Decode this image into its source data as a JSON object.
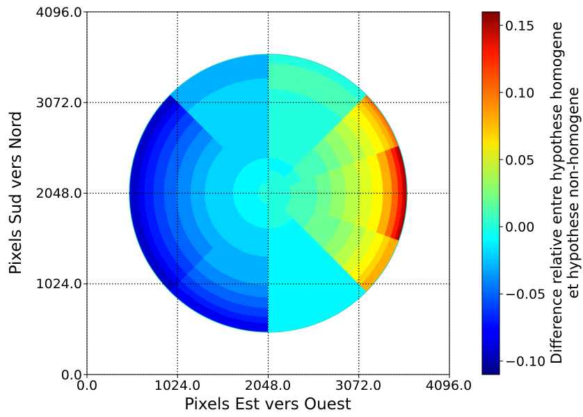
{
  "chart_data": {
    "type": "heatmap",
    "title": "",
    "xlabel": "Pixels Est vers Ouest",
    "ylabel": "Pixels Sud vers Nord",
    "xlim": [
      0,
      4096
    ],
    "ylim": [
      0,
      4096
    ],
    "x_ticks": [
      "0.0",
      "1024.0",
      "2048.0",
      "3072.0",
      "4096.0"
    ],
    "y_ticks": [
      "0.0",
      "1024.0",
      "2048.0",
      "3072.0",
      "4096.0"
    ],
    "grid": true,
    "colormap": "jet",
    "colorbar": {
      "label_line1": "Difference relative entre hypothese homogene",
      "label_line2": "et hypothese non-homogene",
      "range": [
        -0.11,
        0.16
      ],
      "ticks": [
        "−0.10",
        "−0.05",
        "0.00",
        "0.05",
        "0.10",
        "0.15"
      ],
      "tick_values": [
        -0.1,
        -0.05,
        0.0,
        0.05,
        0.1,
        0.15
      ]
    },
    "disk": {
      "center": [
        2048,
        2048
      ],
      "radius": 1570,
      "ring_boundaries": [
        0,
        120,
        260,
        400,
        560,
        720,
        880,
        1040,
        1180,
        1300,
        1400,
        1470,
        1520,
        1550,
        1570
      ],
      "description": "polar sectors coloured by relative difference; negative (blue) on the east/left limb, positive (yellow-red) on the west/right limb",
      "sector_values": [
        {
          "angle_from": -20,
          "angle_to": 20,
          "values": [
            0.0,
            0.0,
            0.01,
            0.01,
            0.02,
            0.03,
            0.04,
            0.05,
            0.06,
            0.08,
            0.1,
            0.12,
            0.14,
            0.15
          ]
        },
        {
          "angle_from": 20,
          "angle_to": 45,
          "values": [
            0.0,
            0.0,
            0.0,
            0.01,
            0.01,
            0.02,
            0.03,
            0.04,
            0.05,
            0.06,
            0.07,
            0.08,
            0.09,
            0.1
          ]
        },
        {
          "angle_from": 45,
          "angle_to": 90,
          "values": [
            0.0,
            0.0,
            -0.01,
            0.0,
            0.0,
            0.0,
            0.0,
            0.0,
            0.01,
            0.01,
            0.01,
            0.0,
            0.0,
            0.0
          ]
        },
        {
          "angle_from": 90,
          "angle_to": 135,
          "values": [
            0.0,
            -0.01,
            -0.01,
            -0.02,
            -0.02,
            -0.02,
            -0.02,
            -0.02,
            -0.02,
            -0.03,
            -0.03,
            -0.03,
            -0.03,
            -0.03
          ]
        },
        {
          "angle_from": 135,
          "angle_to": 160,
          "values": [
            0.0,
            -0.01,
            -0.01,
            -0.02,
            -0.02,
            -0.03,
            -0.04,
            -0.05,
            -0.06,
            -0.07,
            -0.08,
            -0.09,
            -0.09,
            -0.09
          ]
        },
        {
          "angle_from": 160,
          "angle_to": 200,
          "values": [
            0.0,
            -0.01,
            -0.01,
            -0.02,
            -0.02,
            -0.03,
            -0.04,
            -0.05,
            -0.06,
            -0.07,
            -0.08,
            -0.09,
            -0.09,
            -0.09
          ]
        },
        {
          "angle_from": 200,
          "angle_to": 225,
          "values": [
            0.0,
            -0.01,
            -0.01,
            -0.02,
            -0.02,
            -0.03,
            -0.04,
            -0.05,
            -0.06,
            -0.07,
            -0.08,
            -0.09,
            -0.09,
            -0.09
          ]
        },
        {
          "angle_from": 225,
          "angle_to": 270,
          "values": [
            0.0,
            -0.01,
            -0.01,
            -0.02,
            -0.02,
            -0.03,
            -0.03,
            -0.04,
            -0.05,
            -0.06,
            -0.07,
            -0.08,
            -0.08,
            -0.08
          ]
        },
        {
          "angle_from": 270,
          "angle_to": 315,
          "values": [
            0.0,
            0.0,
            0.0,
            -0.01,
            -0.01,
            -0.01,
            -0.01,
            -0.01,
            -0.01,
            -0.01,
            -0.01,
            -0.01,
            -0.01,
            -0.01
          ]
        },
        {
          "angle_from": 315,
          "angle_to": 340,
          "values": [
            0.0,
            0.0,
            0.01,
            0.01,
            0.02,
            0.02,
            0.03,
            0.04,
            0.05,
            0.06,
            0.07,
            0.08,
            0.08,
            0.08
          ]
        }
      ]
    }
  }
}
